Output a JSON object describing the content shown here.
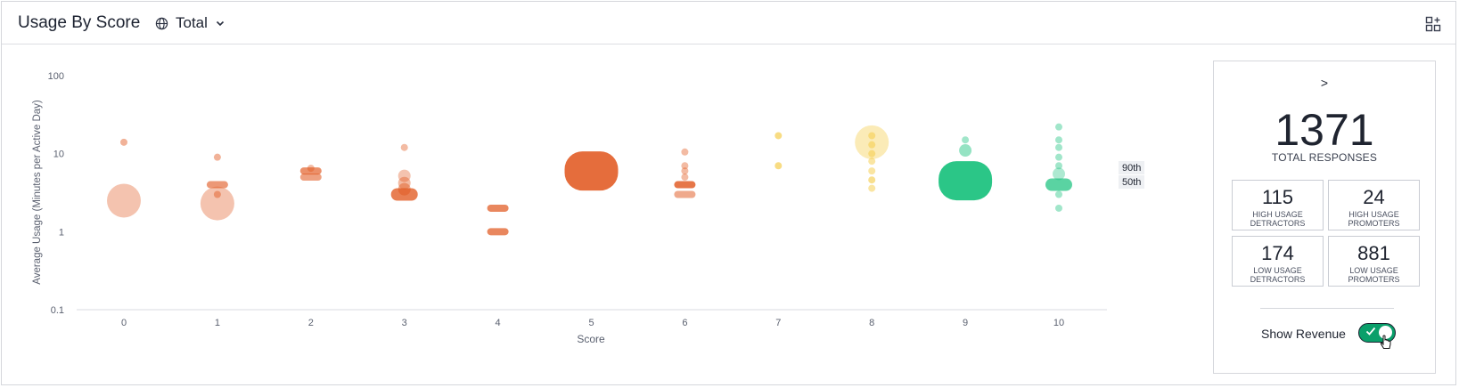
{
  "header": {
    "title": "Usage By Score",
    "selector_label": "Total"
  },
  "colors": {
    "detractor": "#e0541a",
    "passive": "#f3c531",
    "promoter": "#14c07a",
    "toggle_on": "#0a9f6a"
  },
  "chart_data": {
    "type": "scatter",
    "xlabel": "Score",
    "ylabel": "Average Usage (Minutes per Active Day)",
    "y_scale": "log",
    "ylim": [
      0.1,
      100
    ],
    "y_ticks": [
      "100",
      "10",
      "1",
      "0.1"
    ],
    "x_ticks": [
      "0",
      "1",
      "2",
      "3",
      "4",
      "5",
      "6",
      "7",
      "8",
      "9",
      "10"
    ],
    "percentile_labels": [
      "90th",
      "50th"
    ],
    "categories": [
      {
        "score": 0,
        "group": "detractor",
        "bubbles": [
          {
            "y": 2.5,
            "size": "xl",
            "alpha": 0.35
          },
          {
            "y": 14,
            "size": "s",
            "alpha": 0.45
          }
        ]
      },
      {
        "score": 1,
        "group": "detractor",
        "bubbles": [
          {
            "y": 2.3,
            "size": "xl",
            "alpha": 0.35
          },
          {
            "y": 3,
            "size": "s",
            "alpha": 0.45
          },
          {
            "y": 4,
            "size": "band",
            "alpha": 0.6
          },
          {
            "y": 9,
            "size": "s",
            "alpha": 0.45
          }
        ]
      },
      {
        "score": 2,
        "group": "detractor",
        "bubbles": [
          {
            "y": 5,
            "size": "band",
            "alpha": 0.55
          },
          {
            "y": 6,
            "size": "band",
            "alpha": 0.65
          },
          {
            "y": 6.5,
            "size": "s",
            "alpha": 0.4
          }
        ]
      },
      {
        "score": 3,
        "group": "detractor",
        "bubbles": [
          {
            "y": 3,
            "size": "bandl",
            "alpha": 0.75
          },
          {
            "y": 3.5,
            "size": "m",
            "alpha": 0.45
          },
          {
            "y": 4.2,
            "size": "m",
            "alpha": 0.4
          },
          {
            "y": 5.2,
            "size": "m",
            "alpha": 0.35
          },
          {
            "y": 12,
            "size": "s",
            "alpha": 0.4
          }
        ]
      },
      {
        "score": 4,
        "group": "detractor",
        "bubbles": [
          {
            "y": 1,
            "size": "band",
            "alpha": 0.7
          },
          {
            "y": 2,
            "size": "band",
            "alpha": 0.7
          }
        ]
      },
      {
        "score": 5,
        "group": "detractor",
        "bubbles": [
          {
            "y": 6,
            "size": "cluster",
            "alpha": 0.85
          }
        ]
      },
      {
        "score": 6,
        "group": "detractor",
        "bubbles": [
          {
            "y": 3,
            "size": "band",
            "alpha": 0.5
          },
          {
            "y": 4,
            "size": "band",
            "alpha": 0.8
          },
          {
            "y": 5,
            "size": "s",
            "alpha": 0.4
          },
          {
            "y": 6,
            "size": "s",
            "alpha": 0.4
          },
          {
            "y": 7,
            "size": "s",
            "alpha": 0.4
          },
          {
            "y": 10.5,
            "size": "s",
            "alpha": 0.4
          }
        ]
      },
      {
        "score": 7,
        "group": "passive",
        "bubbles": [
          {
            "y": 7,
            "size": "s",
            "alpha": 0.6
          },
          {
            "y": 17,
            "size": "s",
            "alpha": 0.6
          }
        ]
      },
      {
        "score": 8,
        "group": "passive",
        "bubbles": [
          {
            "y": 14,
            "size": "l",
            "alpha": 0.35
          },
          {
            "y": 3.6,
            "size": "s",
            "alpha": 0.45
          },
          {
            "y": 4.6,
            "size": "s",
            "alpha": 0.55
          },
          {
            "y": 6,
            "size": "s",
            "alpha": 0.45
          },
          {
            "y": 8,
            "size": "s",
            "alpha": 0.45
          },
          {
            "y": 10,
            "size": "s",
            "alpha": 0.45
          },
          {
            "y": 13,
            "size": "s",
            "alpha": 0.45
          },
          {
            "y": 17,
            "size": "s",
            "alpha": 0.45
          }
        ]
      },
      {
        "score": 9,
        "group": "promoter",
        "bubbles": [
          {
            "y": 4.5,
            "size": "cluster",
            "alpha": 0.9
          },
          {
            "y": 11,
            "size": "m",
            "alpha": 0.45
          },
          {
            "y": 15,
            "size": "s",
            "alpha": 0.4
          }
        ]
      },
      {
        "score": 10,
        "group": "promoter",
        "bubbles": [
          {
            "y": 4,
            "size": "bandl",
            "alpha": 0.7
          },
          {
            "y": 5.5,
            "size": "m",
            "alpha": 0.35
          },
          {
            "y": 2,
            "size": "s",
            "alpha": 0.4
          },
          {
            "y": 3,
            "size": "s",
            "alpha": 0.4
          },
          {
            "y": 7,
            "size": "s",
            "alpha": 0.4
          },
          {
            "y": 9,
            "size": "s",
            "alpha": 0.4
          },
          {
            "y": 12,
            "size": "s",
            "alpha": 0.4
          },
          {
            "y": 15,
            "size": "s",
            "alpha": 0.4
          },
          {
            "y": 22,
            "size": "s",
            "alpha": 0.4
          }
        ]
      }
    ]
  },
  "summary": {
    "arrow": ">",
    "total": "1371",
    "total_label": "TOTAL RESPONSES",
    "stats": [
      {
        "value": "115",
        "label": "HIGH USAGE DETRACTORS"
      },
      {
        "value": "24",
        "label": "HIGH USAGE PROMOTERS"
      },
      {
        "value": "174",
        "label": "LOW USAGE DETRACTORS"
      },
      {
        "value": "881",
        "label": "LOW USAGE PROMOTERS"
      }
    ],
    "show_revenue_label": "Show Revenue",
    "show_revenue_on": true
  }
}
